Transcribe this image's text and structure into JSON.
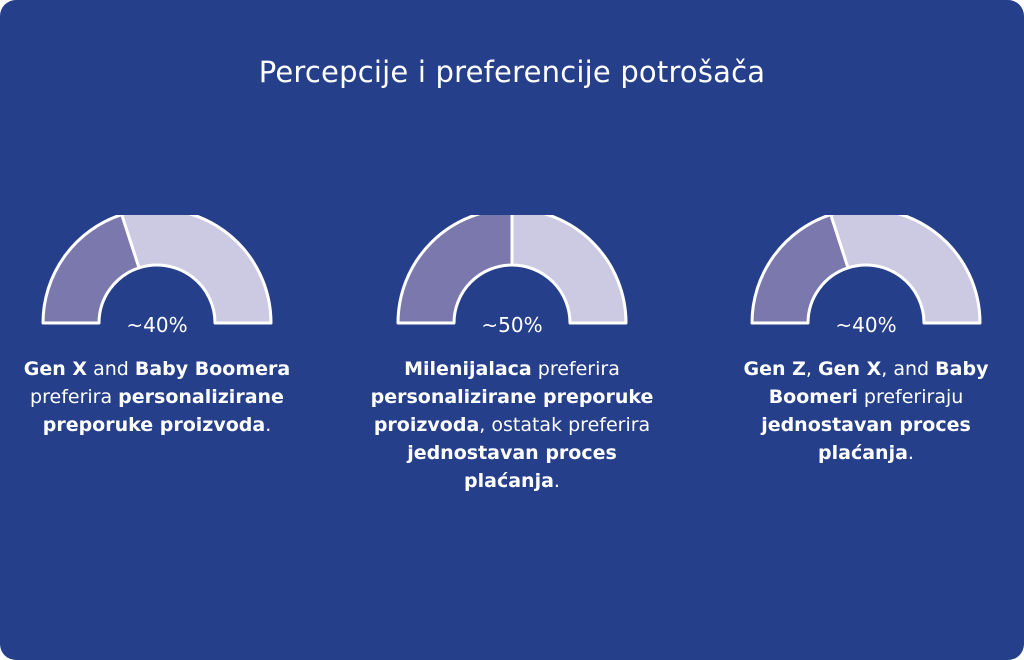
{
  "title": "Percepcije i preferencije potrošača",
  "colors": {
    "background": "#263f8a",
    "segment_primary": "#7b78ad",
    "segment_secondary": "#cbcae2",
    "outline": "#ffffff"
  },
  "chart_data": [
    {
      "type": "pie",
      "label": "~40%",
      "value": 40,
      "caption": [
        {
          "text": "Gen X",
          "bold": true
        },
        {
          "text": " and ",
          "bold": false
        },
        {
          "text": "Baby Boomera",
          "bold": true
        },
        {
          "text": " preferira ",
          "bold": false
        },
        {
          "text": "personalizirane preporuke proizvoda",
          "bold": true
        },
        {
          "text": ".",
          "bold": false
        }
      ]
    },
    {
      "type": "pie",
      "label": "~50%",
      "value": 50,
      "caption": [
        {
          "text": "Milenijalaca",
          "bold": true
        },
        {
          "text": " preferira ",
          "bold": false
        },
        {
          "text": "personalizirane preporuke proizvoda",
          "bold": true
        },
        {
          "text": ", ostatak preferira ",
          "bold": false
        },
        {
          "text": "jednostavan proces plaćanja",
          "bold": true
        },
        {
          "text": ".",
          "bold": false
        }
      ]
    },
    {
      "type": "pie",
      "label": "~40%",
      "value": 40,
      "caption": [
        {
          "text": "Gen Z",
          "bold": true
        },
        {
          "text": ", ",
          "bold": false
        },
        {
          "text": "Gen X",
          "bold": true
        },
        {
          "text": ", and ",
          "bold": false
        },
        {
          "text": "Baby Boomeri",
          "bold": true
        },
        {
          "text": " preferiraju ",
          "bold": false
        },
        {
          "text": "jednostavan proces plaćanja",
          "bold": true
        },
        {
          "text": ".",
          "bold": false
        }
      ]
    }
  ]
}
